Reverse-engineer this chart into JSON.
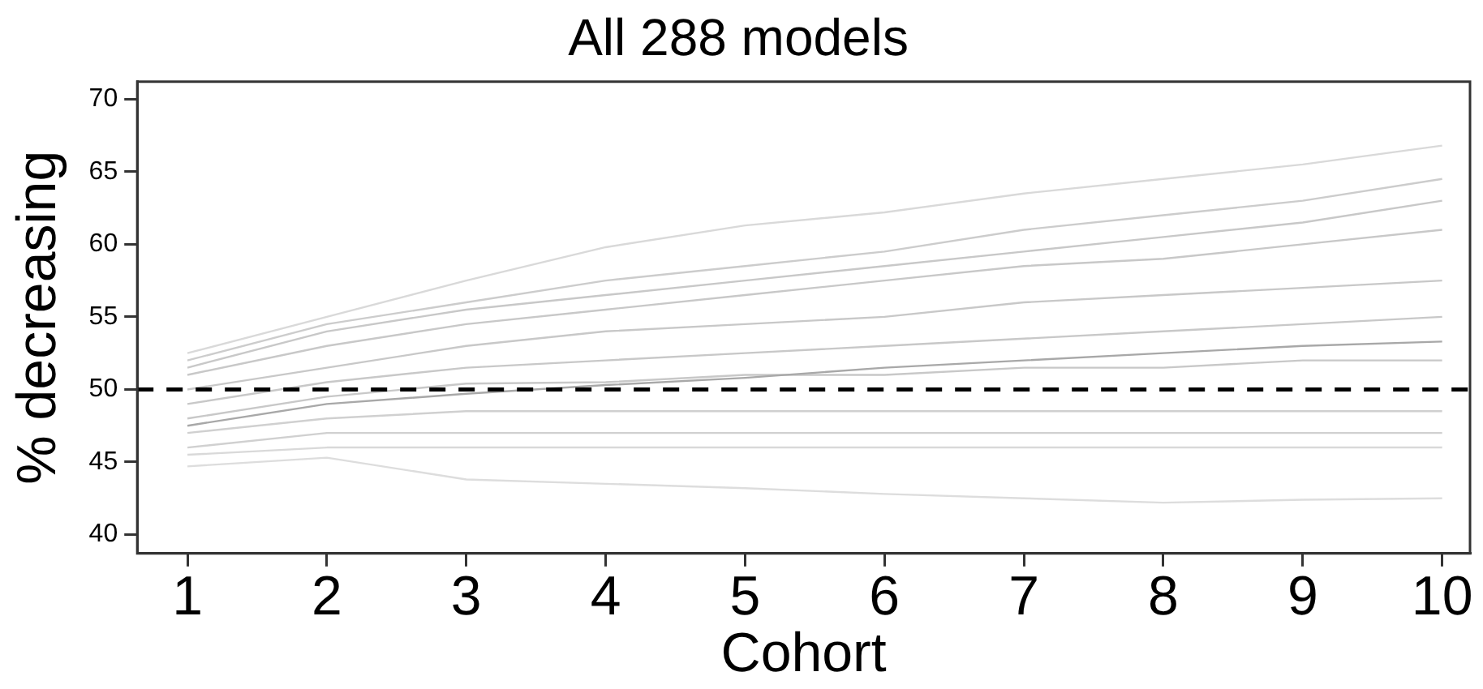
{
  "chart_data": {
    "type": "line",
    "title": "All 288 models",
    "xlabel": "Cohort",
    "ylabel": "% decreasing",
    "x": [
      1,
      2,
      3,
      4,
      5,
      6,
      7,
      8,
      9,
      10
    ],
    "xlim": [
      0.64,
      10.2
    ],
    "xticks": [
      1,
      2,
      3,
      4,
      5,
      6,
      7,
      8,
      9,
      10
    ],
    "ylim": [
      38.7,
      71.2
    ],
    "yticks": [
      40,
      45,
      50,
      55,
      60,
      65,
      70
    ],
    "grid": false,
    "legend": false,
    "marker": "none",
    "line_style": "solid",
    "series": [
      {
        "color": "#d9d9d9",
        "values": [
          52.5,
          55,
          57.5,
          59.8,
          61.3,
          62.2,
          63.5,
          64.5,
          65.5,
          66.8
        ]
      },
      {
        "color": "#cccccc",
        "values": [
          52,
          54.5,
          56,
          57.5,
          58.5,
          59.5,
          61,
          62,
          63,
          64.5
        ]
      },
      {
        "color": "#c8c8c8",
        "values": [
          51.5,
          54,
          55.5,
          56.5,
          57.5,
          58.5,
          59.5,
          60.5,
          61.5,
          63
        ]
      },
      {
        "color": "#c8c8c8",
        "values": [
          51,
          53,
          54.5,
          55.5,
          56.5,
          57.5,
          58.5,
          59,
          60,
          61
        ]
      },
      {
        "color": "#c8c8c8",
        "values": [
          50,
          51.5,
          53,
          54,
          54.5,
          55,
          56,
          56.5,
          57,
          57.5
        ]
      },
      {
        "color": "#a8a8a8",
        "values": [
          47.5,
          49,
          49.7,
          50.3,
          50.8,
          51.5,
          52,
          52.5,
          53,
          53.3
        ]
      },
      {
        "color": "#c8c8c8",
        "values": [
          49,
          50.5,
          51.5,
          52,
          52.5,
          53,
          53.5,
          54,
          54.5,
          55
        ]
      },
      {
        "color": "#c8c8c8",
        "values": [
          48,
          49.5,
          50.4,
          50.5,
          51,
          51,
          51.5,
          51.5,
          52,
          52
        ]
      },
      {
        "color": "#d0d0d0",
        "values": [
          47,
          48,
          48.5,
          48.5,
          48.5,
          48.5,
          48.5,
          48.5,
          48.5,
          48.5
        ]
      },
      {
        "color": "#d0d0d0",
        "values": [
          46,
          47,
          47,
          47,
          47,
          47,
          47,
          47,
          47,
          47
        ]
      },
      {
        "color": "#d9d9d9",
        "values": [
          45.5,
          46,
          46,
          46,
          46,
          46,
          46,
          46,
          46,
          46
        ]
      },
      {
        "color": "#dddddd",
        "values": [
          44.7,
          45.3,
          43.8,
          43.5,
          43.2,
          42.8,
          42.5,
          42.2,
          42.4,
          42.5
        ]
      }
    ],
    "ref_lines": [
      {
        "axis": "y",
        "value": 50,
        "color": "#000000",
        "line_style": "dashed"
      }
    ]
  }
}
